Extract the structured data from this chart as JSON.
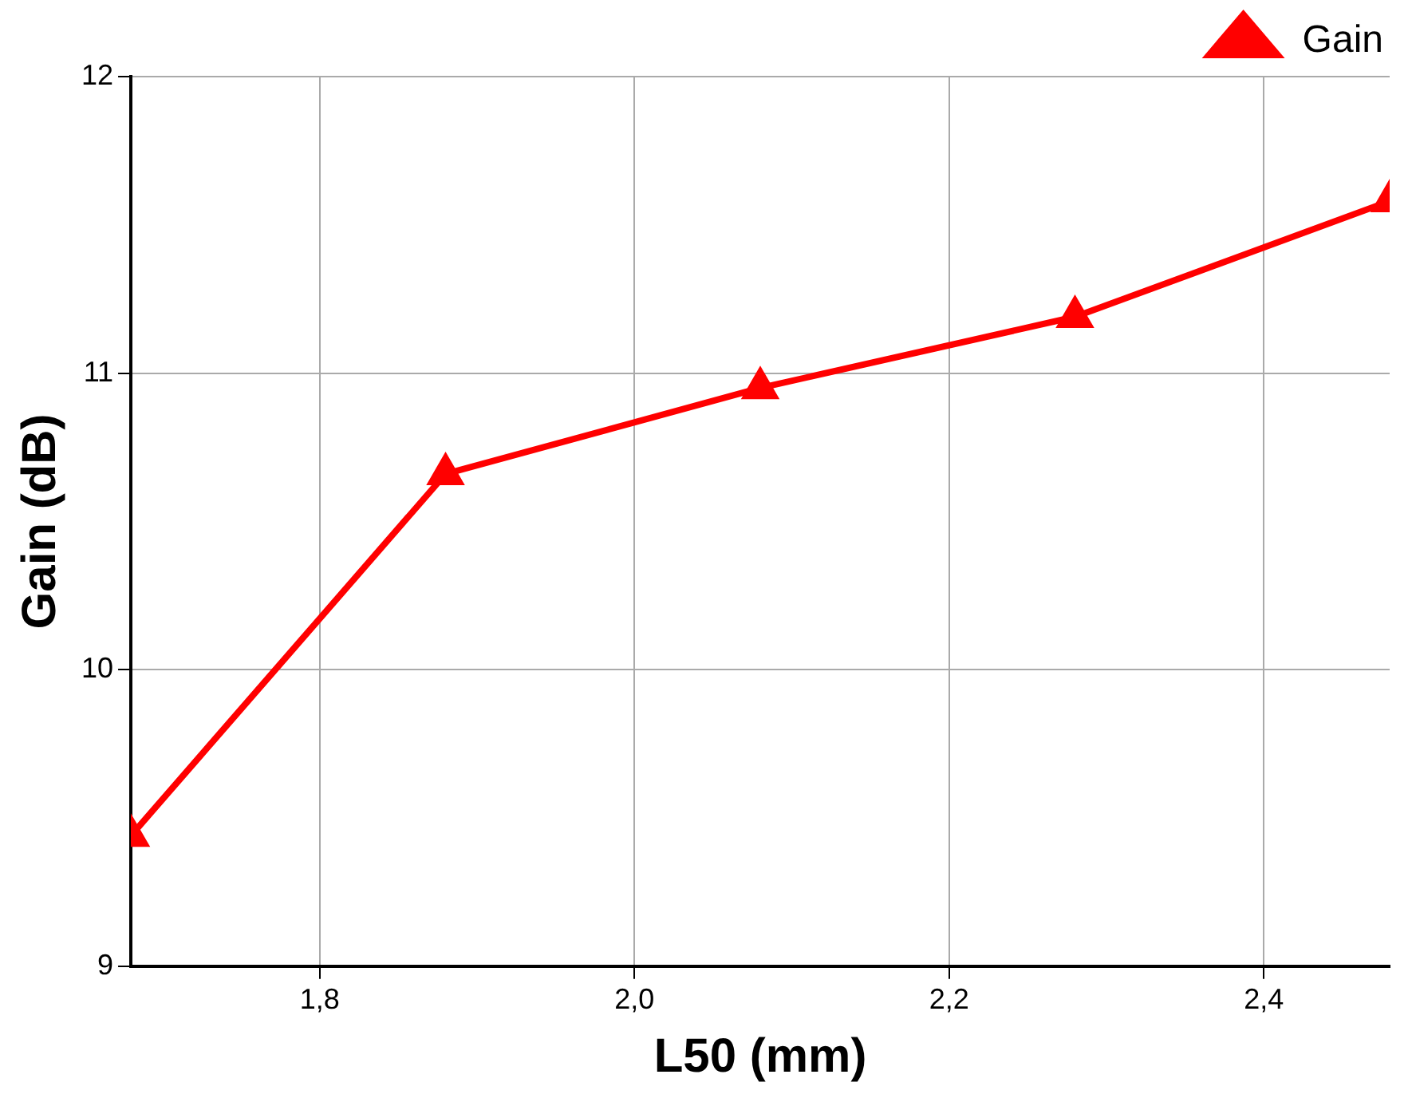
{
  "chart_data": {
    "type": "line",
    "xlabel": "L50 (mm)",
    "ylabel": "Gain (dB)",
    "x": [
      1.68,
      1.88,
      2.08,
      2.28,
      2.48
    ],
    "series": [
      {
        "name": "Gain",
        "color": "#ff0000",
        "values": [
          9.44,
          10.66,
          10.95,
          11.19,
          11.58
        ]
      }
    ],
    "xlim": [
      1.68,
      2.48
    ],
    "xticks": [
      {
        "value": 1.8,
        "label": "1,8"
      },
      {
        "value": 2.0,
        "label": "2,0"
      },
      {
        "value": 2.2,
        "label": "2,2"
      },
      {
        "value": 2.4,
        "label": "2,4"
      }
    ],
    "ylim": [
      9,
      12
    ],
    "yticks": [
      9,
      10,
      11,
      12
    ],
    "grid": true,
    "legend": "top right",
    "marker": "triangle",
    "line_style": "solid"
  }
}
